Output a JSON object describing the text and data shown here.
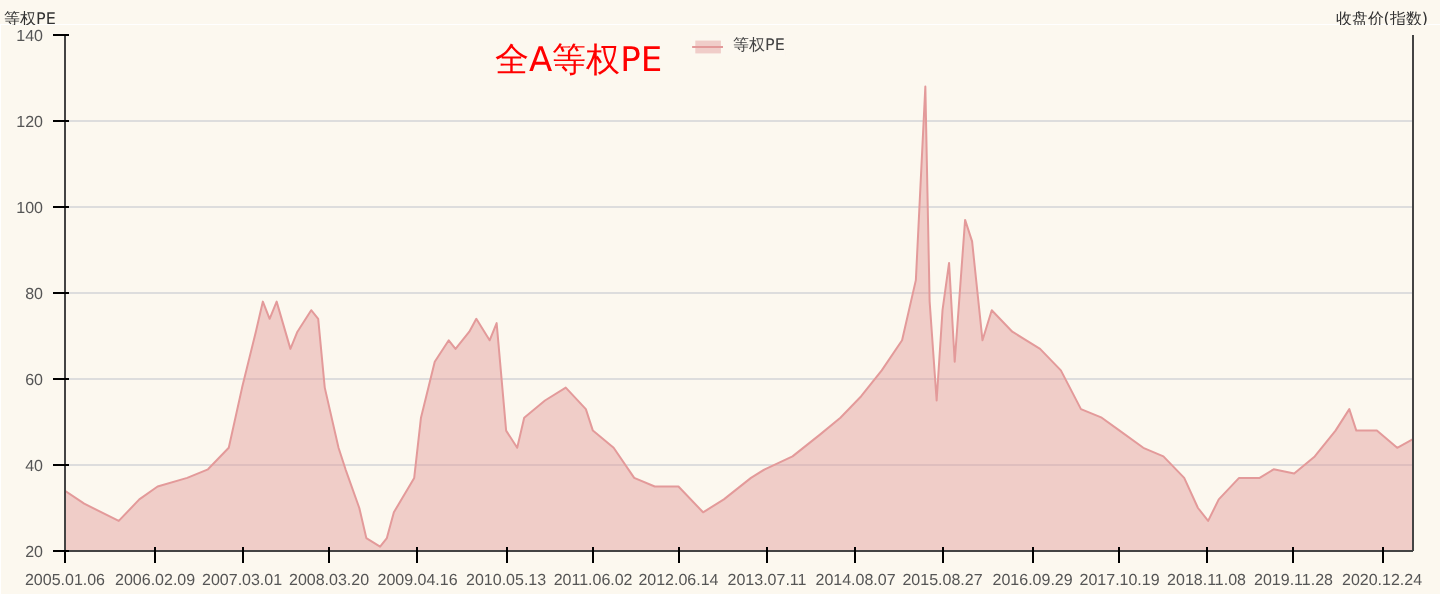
{
  "chart_data": {
    "type": "area",
    "title": "全A等权PE",
    "ylabel": "等权PE",
    "y2label": "收盘价(指数)",
    "x": [
      "2005-01-06",
      "2005-04-01",
      "2005-09-01",
      "2005-12-01",
      "2006-02-20",
      "2006-07-01",
      "2006-10-01",
      "2007-01-01",
      "2007-03-01",
      "2007-05-01",
      "2007-06-01",
      "2007-07-01",
      "2007-08-01",
      "2007-10-01",
      "2007-11-01",
      "2008-01-01",
      "2008-02-01",
      "2008-03-01",
      "2008-05-01",
      "2008-06-01",
      "2008-08-01",
      "2008-09-01",
      "2008-11-01",
      "2008-12-01",
      "2009-01-01",
      "2009-04-01",
      "2009-05-01",
      "2009-07-01",
      "2009-09-01",
      "2009-10-01",
      "2009-12-01",
      "2010-01-01",
      "2010-03-01",
      "2010-04-01",
      "2010-05-13",
      "2010-07-01",
      "2010-08-01",
      "2010-11-01",
      "2011-02-01",
      "2011-05-01",
      "2011-06-01",
      "2011-09-01",
      "2011-12-01",
      "2012-03-01",
      "2012-06-14",
      "2012-10-01",
      "2013-01-01",
      "2013-05-01",
      "2013-07-01",
      "2013-11-01",
      "2014-03-01",
      "2014-06-01",
      "2014-09-01",
      "2014-12-01",
      "2015-03-01",
      "2015-05-01",
      "2015-06-12",
      "2015-07-01",
      "2015-08-01",
      "2015-08-27",
      "2015-09-25",
      "2015-10-20",
      "2015-12-05",
      "2016-01-05",
      "2016-02-20",
      "2016-04-01",
      "2016-07-01",
      "2016-09-01",
      "2016-11-01",
      "2017-02-01",
      "2017-05-01",
      "2017-08-01",
      "2017-10-19",
      "2018-02-01",
      "2018-05-01",
      "2018-08-01",
      "2018-10-01",
      "2018-11-15",
      "2019-01-01",
      "2019-04-01",
      "2019-07-01",
      "2019-09-01",
      "2019-12-01",
      "2020-03-01",
      "2020-06-01",
      "2020-08-01",
      "2020-09-01",
      "2020-12-01",
      "2021-03-01",
      "2021-05-10"
    ],
    "series": [
      {
        "name": "等权PE",
        "color": "#e39a9a",
        "values": [
          34,
          31,
          27,
          32,
          35,
          37,
          39,
          44,
          58,
          71,
          78,
          74,
          78,
          67,
          71,
          76,
          74,
          58,
          44,
          39,
          30,
          23,
          21,
          23,
          29,
          37,
          51,
          64,
          69,
          67,
          71,
          74,
          69,
          73,
          48,
          44,
          51,
          55,
          58,
          53,
          48,
          44,
          37,
          35,
          35,
          29,
          32,
          37,
          39,
          42,
          47,
          51,
          56,
          62,
          69,
          83,
          128,
          78,
          55,
          76,
          87,
          64,
          97,
          92,
          69,
          76,
          71,
          69,
          67,
          62,
          53,
          51,
          48,
          44,
          42,
          37,
          30,
          27,
          32,
          37,
          37,
          39,
          38,
          42,
          48,
          53,
          48,
          48,
          44,
          46
        ]
      }
    ],
    "xlim": [
      "2005-01-06",
      "2021-05-10"
    ],
    "xticks": [
      {
        "value": "2005-01-06",
        "label": "2005.01.06"
      },
      {
        "value": "2006-02-09",
        "label": "2006.02.09"
      },
      {
        "value": "2007-03-01",
        "label": "2007.03.01"
      },
      {
        "value": "2008-03-20",
        "label": "2008.03.20"
      },
      {
        "value": "2009-04-16",
        "label": "2009.04.16"
      },
      {
        "value": "2010-05-13",
        "label": "2010.05.13"
      },
      {
        "value": "2011-06-02",
        "label": "2011.06.02"
      },
      {
        "value": "2012-06-14",
        "label": "2012.06.14"
      },
      {
        "value": "2013-07-11",
        "label": "2013.07.11"
      },
      {
        "value": "2014-08-07",
        "label": "2014.08.07"
      },
      {
        "value": "2015-08-27",
        "label": "2015.08.27"
      },
      {
        "value": "2016-09-29",
        "label": "2016.09.29"
      },
      {
        "value": "2017-10-19",
        "label": "2017.10.19"
      },
      {
        "value": "2018-11-08",
        "label": "2018.11.08"
      },
      {
        "value": "2019-11-28",
        "label": "2019.11.28"
      },
      {
        "value": "2020-12-24",
        "label": "2020.12.24"
      }
    ],
    "ylim": [
      20,
      140
    ],
    "yticks": [
      20,
      40,
      60,
      80,
      100,
      120,
      140
    ],
    "grid": "y",
    "legend": "top"
  }
}
